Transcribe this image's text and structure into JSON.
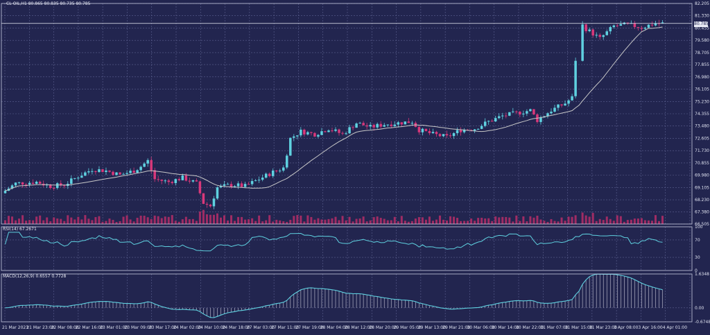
{
  "header": {
    "symbol_line": "CL-OIL,H1  80.865 80.835 80.735 80.785"
  },
  "current_price": "80.785",
  "chart_data": [
    {
      "type": "candlestick",
      "panel": "price",
      "yaxis_ticks": [
        "82.205",
        "81.330",
        "80.455",
        "79.580",
        "78.705",
        "77.855",
        "76.980",
        "76.105",
        "75.230",
        "74.355",
        "73.480",
        "72.605",
        "71.730",
        "70.855",
        "69.980",
        "69.105",
        "68.230",
        "67.380",
        "66.505"
      ],
      "ylim": [
        66.505,
        82.205
      ],
      "moving_average": true,
      "volume_bars": true,
      "colors": {
        "up": "#5fd1e0",
        "down": "#d8387a",
        "ma": "#c8c8c8",
        "volume": "#a02c64",
        "grid": "#5d6190"
      }
    },
    {
      "type": "line",
      "panel": "rsi",
      "label": "RSI(14) 67.2671",
      "yaxis_ticks": [
        "100",
        "70",
        "30",
        "0"
      ],
      "ylim": [
        0,
        100
      ],
      "color": "#5fd1e0"
    },
    {
      "type": "line+histogram",
      "panel": "macd",
      "label": "MACD(12,26,9) 0.6557 0.7728",
      "yaxis_ticks": [
        "1.6348",
        "0.00",
        "-0.6748"
      ],
      "ylim": [
        -0.6748,
        1.6348
      ],
      "color": "#5fd1e0",
      "histogram_color": "#c8c8d8"
    }
  ],
  "x_axis": {
    "tick_labels": [
      "21 Mar 2023",
      "21 Mar 23:00",
      "22 Mar 08:00",
      "22 Mar 16:00",
      "23 Mar 01:00",
      "23 Mar 09:00",
      "23 Mar 17:00",
      "24 Mar 02:00",
      "24 Mar 10:00",
      "24 Mar 18:00",
      "27 Mar 03:00",
      "27 Mar 11:00",
      "27 Mar 19:00",
      "28 Mar 04:00",
      "28 Mar 12:00",
      "28 Mar 20:00",
      "29 Mar 05:00",
      "29 Mar 13:00",
      "29 Mar 21:00",
      "30 Mar 06:00",
      "30 Mar 14:00",
      "30 Mar 22:00",
      "31 Mar 07:00",
      "31 Mar 15:00",
      "31 Mar 23:00",
      "3 Apr 08:00",
      "3 Apr 16:00",
      "4 Apr 01:00"
    ]
  }
}
